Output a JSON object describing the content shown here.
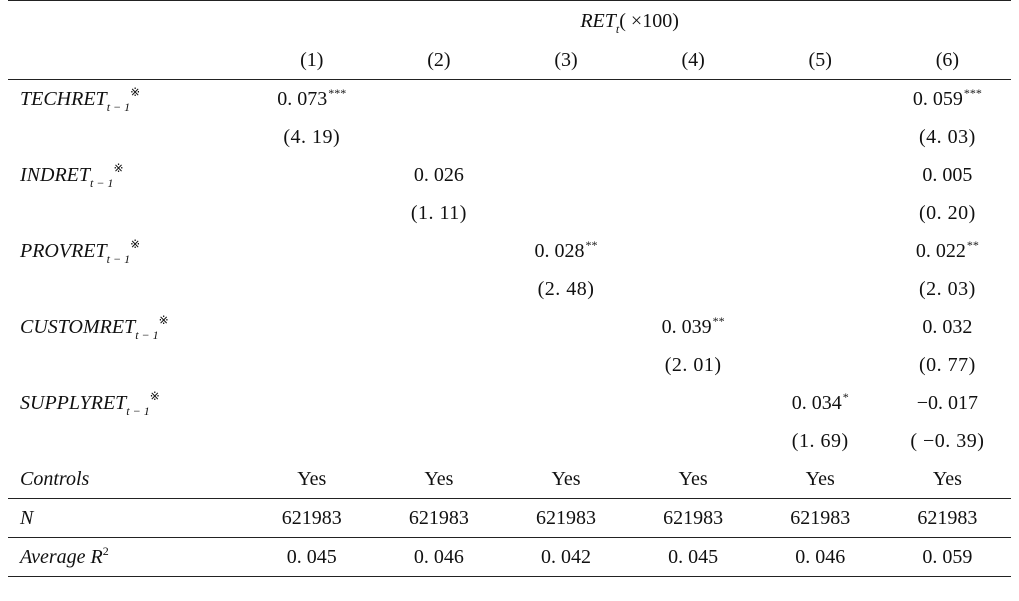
{
  "header": {
    "dependent_var": "RET",
    "dependent_sub": "t",
    "dependent_scale": "( ×100)",
    "columns": [
      "(1)",
      "(2)",
      "(3)",
      "(4)",
      "(5)",
      "(6)"
    ]
  },
  "variables": [
    {
      "name": "TECHRET",
      "sub": "t-1",
      "mark": "※",
      "coefs": [
        {
          "value": "0.073",
          "stars": "***"
        },
        null,
        null,
        null,
        null,
        {
          "value": "0.059",
          "stars": "***"
        }
      ],
      "tstats": [
        "(4.19)",
        null,
        null,
        null,
        null,
        "(4.03)"
      ]
    },
    {
      "name": "INDRET",
      "sub": "t-1",
      "mark": "※",
      "coefs": [
        null,
        {
          "value": "0.026",
          "stars": ""
        },
        null,
        null,
        null,
        {
          "value": "0.005",
          "stars": ""
        }
      ],
      "tstats": [
        null,
        "(1.11)",
        null,
        null,
        null,
        "(0.20)"
      ]
    },
    {
      "name": "PROVRET",
      "sub": "t-1",
      "mark": "※",
      "coefs": [
        null,
        null,
        {
          "value": "0.028",
          "stars": "**"
        },
        null,
        null,
        {
          "value": "0.022",
          "stars": "**"
        }
      ],
      "tstats": [
        null,
        null,
        "(2.48)",
        null,
        null,
        "(2.03)"
      ]
    },
    {
      "name": "CUSTOMRET",
      "sub": "t-1",
      "mark": "※",
      "coefs": [
        null,
        null,
        null,
        {
          "value": "0.039",
          "stars": "**"
        },
        null,
        {
          "value": "0.032",
          "stars": ""
        }
      ],
      "tstats": [
        null,
        null,
        null,
        "(2.01)",
        null,
        "(0.77)"
      ]
    },
    {
      "name": "SUPPLYRET",
      "sub": "t-1",
      "mark": "※",
      "coefs": [
        null,
        null,
        null,
        null,
        {
          "value": "0.034",
          "stars": "*"
        },
        {
          "value": "-0.017",
          "stars": ""
        }
      ],
      "tstats": [
        null,
        null,
        null,
        null,
        "(1.69)",
        "(-0.39)"
      ]
    }
  ],
  "footer_rows": [
    {
      "label": "Controls",
      "label_sup": "",
      "values": [
        "Yes",
        "Yes",
        "Yes",
        "Yes",
        "Yes",
        "Yes"
      ]
    },
    {
      "label": "N",
      "label_sup": "",
      "values": [
        "621983",
        "621983",
        "621983",
        "621983",
        "621983",
        "621983"
      ]
    },
    {
      "label": "Average R",
      "label_sup": "2",
      "values": [
        "0.045",
        "0.046",
        "0.042",
        "0.045",
        "0.046",
        "0.059"
      ]
    }
  ]
}
